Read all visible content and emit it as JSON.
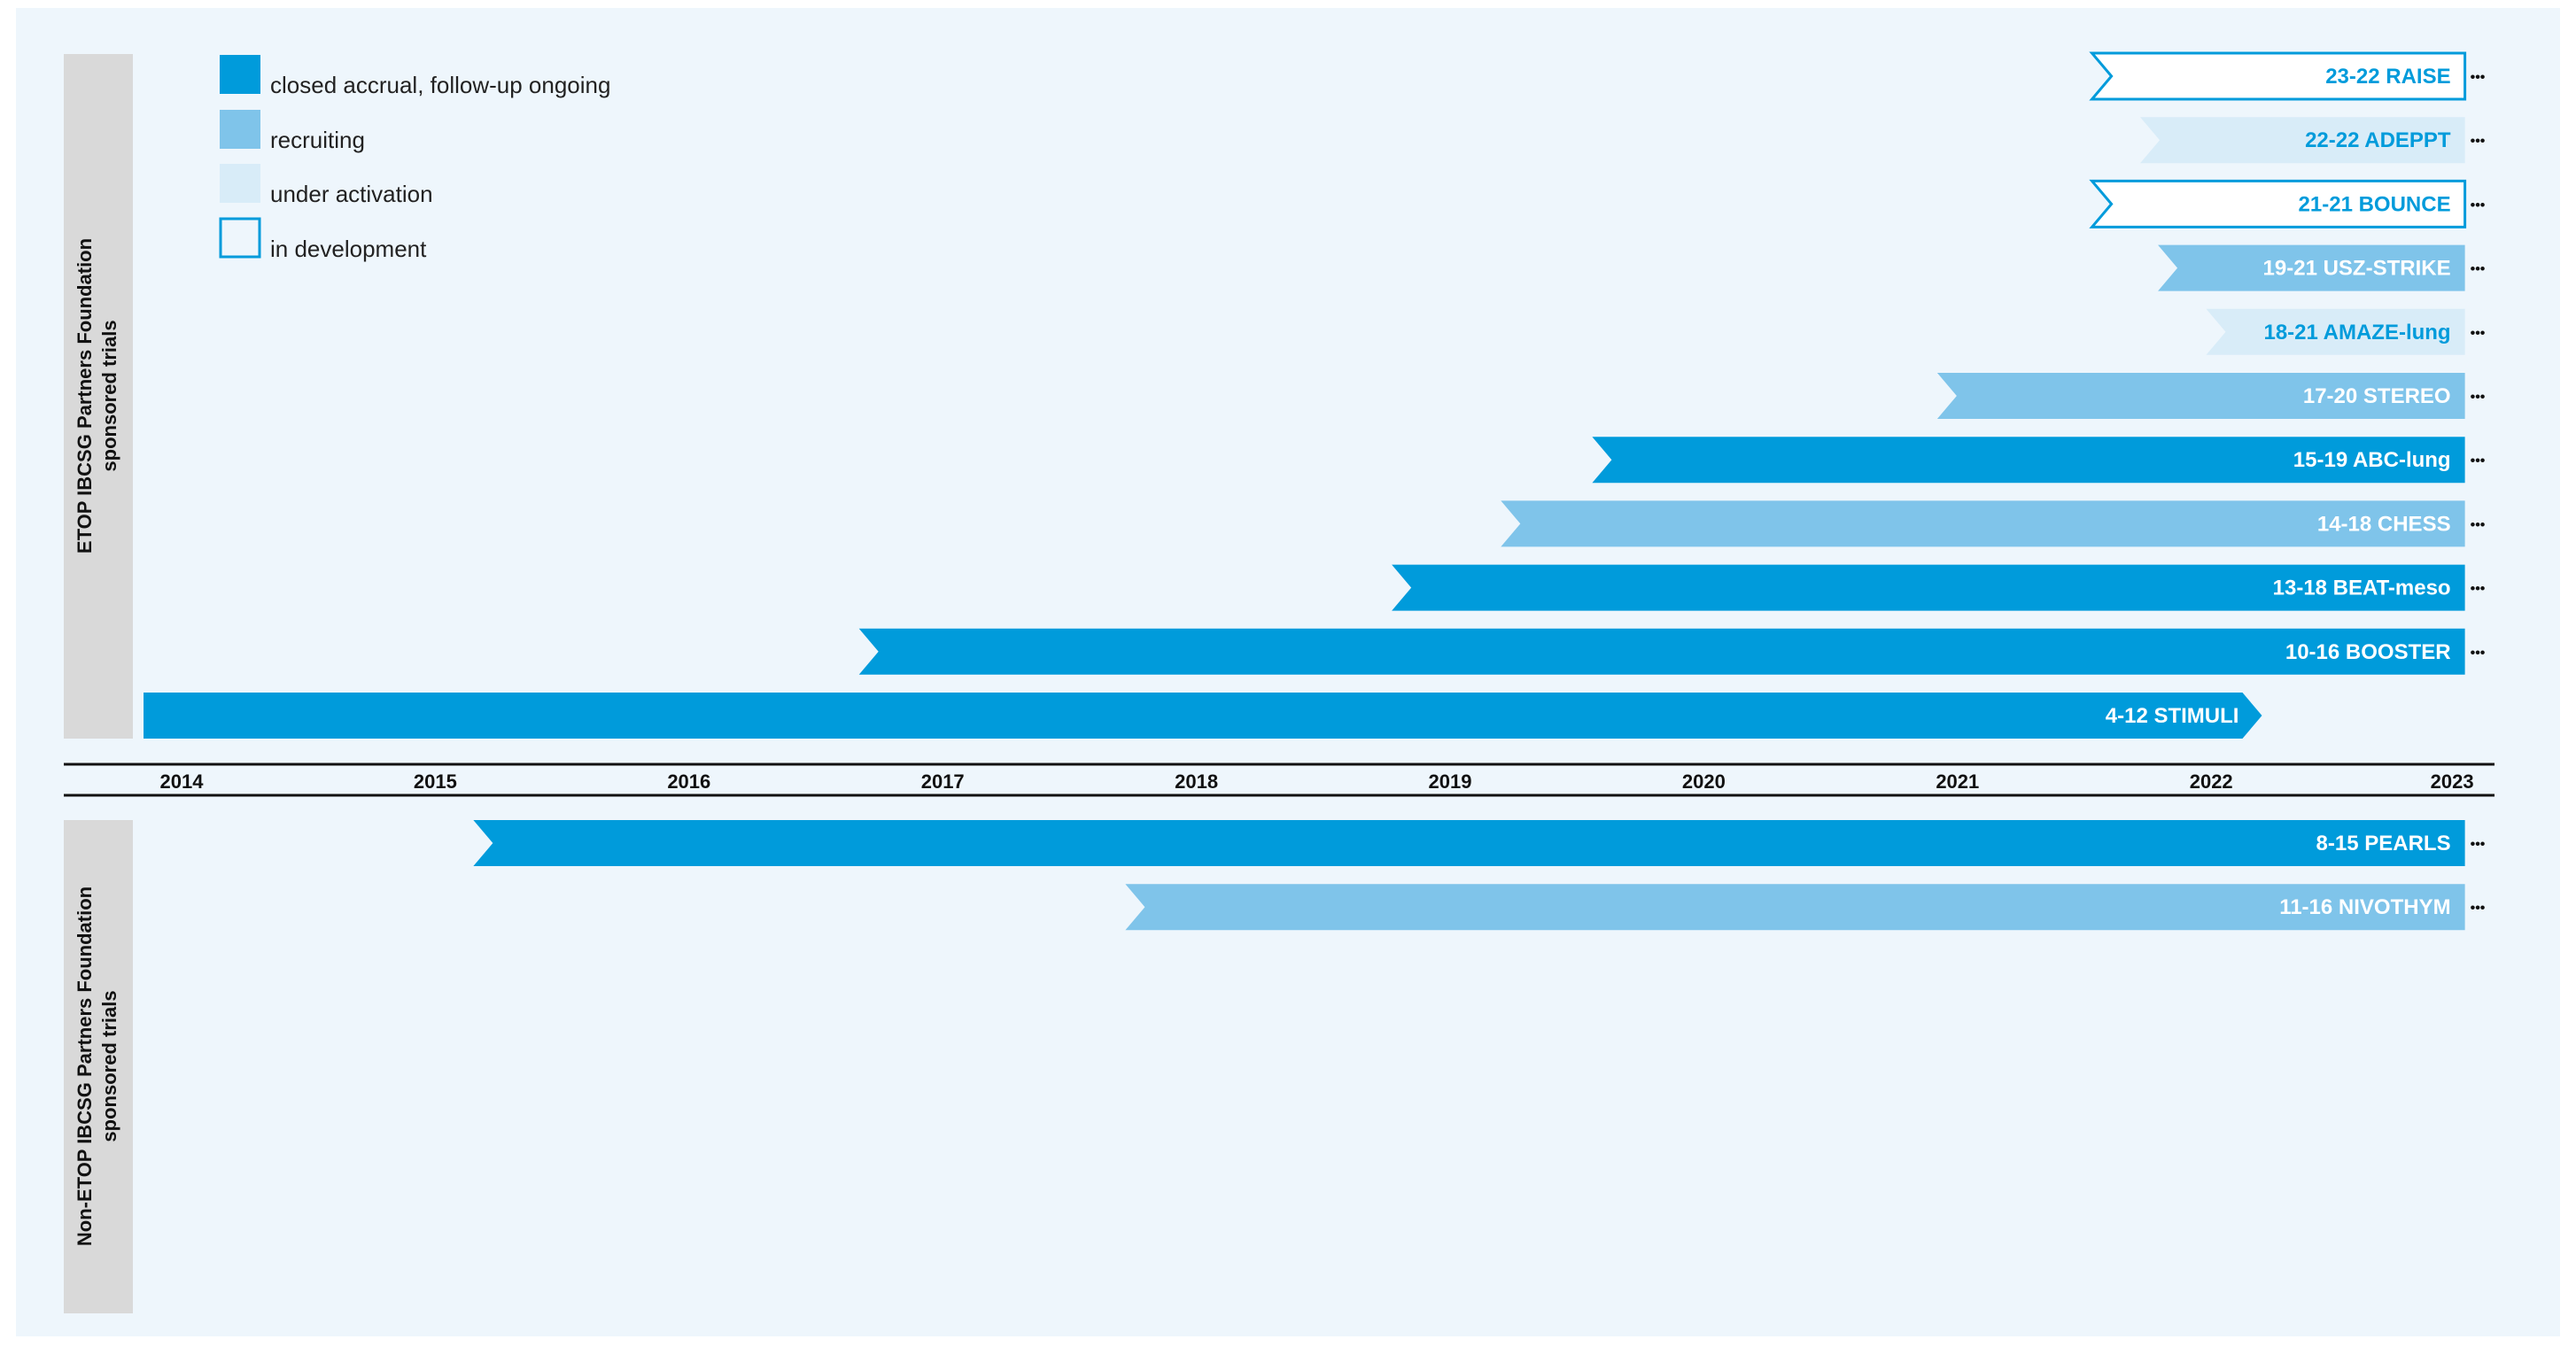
{
  "colors": {
    "closed": "#009bdb",
    "recruiting": "#7fc4ea",
    "activation": "#d8ecf8",
    "development_stroke": "#009bdb",
    "background": "#eef6fc",
    "side_panel": "#d9d9d9"
  },
  "groups": {
    "top_label": "ETOP IBCSG Partners Foundation sponsored trials",
    "bottom_label": "Non-ETOP IBCSG Partners Foundation sponsored trials"
  },
  "more_glyph": "•••",
  "chart_data": {
    "type": "timeline",
    "title": "",
    "xlabel": "",
    "ylabel": "",
    "xlim": [
      2014,
      2023
    ],
    "x_ticks": [
      "2014",
      "2015",
      "2016",
      "2017",
      "2018",
      "2019",
      "2020",
      "2021",
      "2022",
      "2023"
    ],
    "legend": [
      {
        "status": "closed",
        "label": "closed accrual, follow-up ongoing"
      },
      {
        "status": "recruiting",
        "label": "recruiting"
      },
      {
        "status": "activation",
        "label": "under activation"
      },
      {
        "status": "development",
        "label": "in development"
      }
    ],
    "legend_position": "top-left",
    "trials": [
      {
        "group": "top",
        "label": "23-22 RAISE",
        "status": "development",
        "start": 2021.53,
        "end": 2023.0,
        "ongoing": true
      },
      {
        "group": "top",
        "label": "22-22 ADEPPT",
        "status": "activation",
        "start": 2021.72,
        "end": 2023.0,
        "ongoing": true
      },
      {
        "group": "top",
        "label": "21-21 BOUNCE",
        "status": "development",
        "start": 2021.53,
        "end": 2023.0,
        "ongoing": true
      },
      {
        "group": "top",
        "label": "19-21 USZ-STRIKE",
        "status": "recruiting",
        "start": 2021.79,
        "end": 2023.0,
        "ongoing": true
      },
      {
        "group": "top",
        "label": "18-21 AMAZE-lung",
        "status": "activation",
        "start": 2021.98,
        "end": 2023.0,
        "ongoing": true
      },
      {
        "group": "top",
        "label": "17-20 STEREO",
        "status": "recruiting",
        "start": 2020.92,
        "end": 2023.0,
        "ongoing": true
      },
      {
        "group": "top",
        "label": "15-19 ABC-lung",
        "status": "closed",
        "start": 2019.56,
        "end": 2023.0,
        "ongoing": true
      },
      {
        "group": "top",
        "label": "14-18 CHESS",
        "status": "recruiting",
        "start": 2019.2,
        "end": 2023.0,
        "ongoing": true
      },
      {
        "group": "top",
        "label": "13-18 BEAT-meso",
        "status": "closed",
        "start": 2018.77,
        "end": 2023.0,
        "ongoing": true
      },
      {
        "group": "top",
        "label": "10-16 BOOSTER",
        "status": "closed",
        "start": 2016.67,
        "end": 2023.0,
        "ongoing": true
      },
      {
        "group": "top",
        "label": "4-12 STIMULI",
        "status": "closed",
        "start": 2013.85,
        "end": 2022.2,
        "ongoing": false
      },
      {
        "group": "bottom",
        "label": "8-15 PEARLS",
        "status": "closed",
        "start": 2015.15,
        "end": 2023.0,
        "ongoing": true
      },
      {
        "group": "bottom",
        "label": "11-16 NIVOTHYM",
        "status": "recruiting",
        "start": 2017.72,
        "end": 2023.0,
        "ongoing": true
      }
    ]
  }
}
